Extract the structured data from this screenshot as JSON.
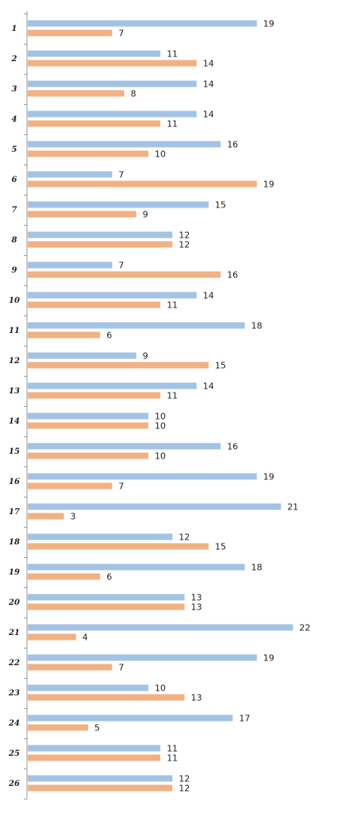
{
  "chart_data": {
    "type": "bar",
    "orientation": "horizontal",
    "categories": [
      "1",
      "2",
      "3",
      "4",
      "5",
      "6",
      "7",
      "8",
      "9",
      "10",
      "11",
      "12",
      "13",
      "14",
      "15",
      "16",
      "17",
      "18",
      "19",
      "20",
      "21",
      "22",
      "23",
      "24",
      "25",
      "26"
    ],
    "series": [
      {
        "color": "#a3c3e5",
        "values": [
          19,
          11,
          14,
          14,
          16,
          7,
          15,
          12,
          7,
          14,
          18,
          9,
          14,
          10,
          16,
          19,
          21,
          12,
          18,
          13,
          22,
          19,
          10,
          17,
          11,
          12
        ]
      },
      {
        "color": "#f2b183",
        "values": [
          7,
          14,
          8,
          11,
          10,
          19,
          9,
          12,
          16,
          11,
          6,
          15,
          11,
          10,
          10,
          7,
          3,
          15,
          6,
          13,
          4,
          7,
          13,
          5,
          11,
          12
        ]
      }
    ],
    "xlim": [
      0,
      22
    ],
    "grid": false,
    "legend": "none",
    "data_labels": true
  }
}
